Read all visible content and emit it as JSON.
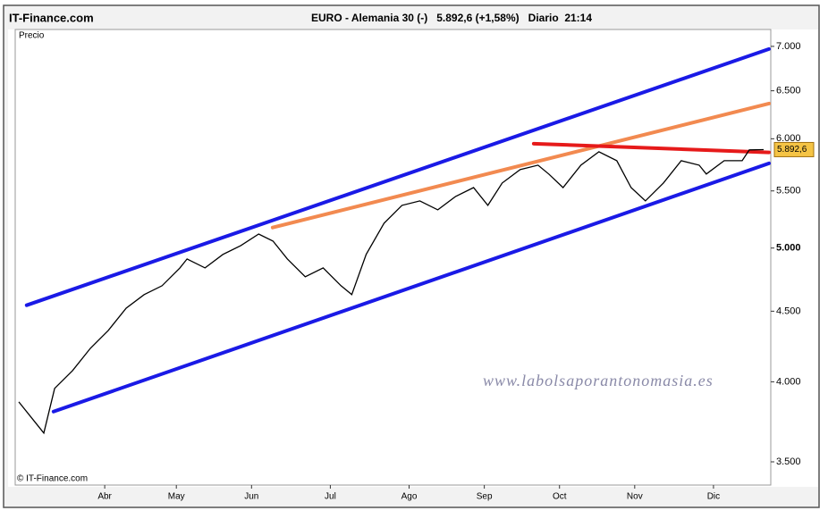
{
  "header": {
    "site": "IT-Finance.com",
    "title": "EURO - Alemania 30 (-)   5.892,6 (+1,58%)   Diario  21:14"
  },
  "chart_data": {
    "type": "line",
    "panel_label": "Precio",
    "copyright": "© IT-Finance.com",
    "watermark": "www.labolsaporantonomasia.es",
    "log_scale": true,
    "grid": false,
    "xlim": [
      0,
      211
    ],
    "xticks": [
      {
        "value": 25,
        "label": "Abr"
      },
      {
        "value": 45,
        "label": "May"
      },
      {
        "value": 66,
        "label": "Jun"
      },
      {
        "value": 88,
        "label": "Jul"
      },
      {
        "value": 110,
        "label": "Ago"
      },
      {
        "value": 131,
        "label": "Sep"
      },
      {
        "value": 152,
        "label": "Oct"
      },
      {
        "value": 173,
        "label": "Nov"
      },
      {
        "value": 195,
        "label": "Dic"
      }
    ],
    "ylim": [
      3367,
      7200
    ],
    "yticks": [
      {
        "value": 3500,
        "label": "3.500"
      },
      {
        "value": 4000,
        "label": "4.000"
      },
      {
        "value": 4500,
        "label": "4.500"
      },
      {
        "value": 5000,
        "label": "5.000"
      },
      {
        "value": 5500,
        "label": "5.500"
      },
      {
        "value": 6000,
        "label": "6.000"
      },
      {
        "value": 6500,
        "label": "6.500"
      },
      {
        "value": 7000,
        "label": "7.000"
      }
    ],
    "series": [
      {
        "color": "#000000",
        "x": [
          1,
          6,
          8,
          11,
          16,
          21,
          26,
          31,
          36,
          41,
          46,
          48,
          53,
          58,
          63,
          68,
          72,
          76,
          81,
          86,
          91,
          94,
          98,
          103,
          108,
          113,
          118,
          123,
          128,
          132,
          136,
          141,
          146,
          149,
          153,
          158,
          163,
          168,
          172,
          176,
          181,
          186,
          191,
          193,
          198,
          203,
          205,
          209
        ],
        "values": [
          3868,
          3727,
          3672,
          3956,
          4075,
          4230,
          4358,
          4523,
          4626,
          4695,
          4837,
          4910,
          4837,
          4947,
          5021,
          5118,
          5058,
          4910,
          4766,
          4837,
          4695,
          4626,
          4947,
          5211,
          5369,
          5409,
          5329,
          5450,
          5531,
          5369,
          5573,
          5699,
          5741,
          5657,
          5531,
          5741,
          5871,
          5784,
          5531,
          5409,
          5573,
          5784,
          5741,
          5657,
          5784,
          5784,
          5890,
          5892.6
        ]
      }
    ],
    "lines": [
      {
        "color": "#1a1ae6",
        "x": [
          3.2,
          210.5
        ],
        "values": [
          4545,
          6969
        ]
      },
      {
        "color": "#1a1ae6",
        "x": [
          10.7,
          210.5
        ],
        "values": [
          3806,
          5759
        ]
      },
      {
        "color": "#f28a50",
        "x": [
          71.9,
          210.5
        ],
        "values": [
          5174,
          6363
        ]
      },
      {
        "color": "#e61a1a",
        "x": [
          144.8,
          210.5
        ],
        "values": [
          5951,
          5865
        ]
      }
    ],
    "last_price": {
      "value": 5892.6,
      "label": "5.892,6"
    }
  }
}
